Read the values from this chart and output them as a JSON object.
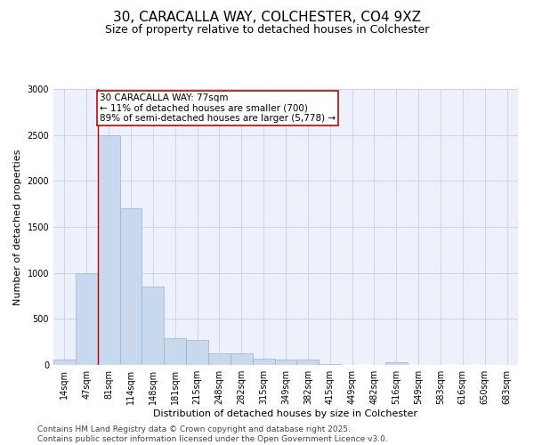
{
  "title": "30, CARACALLA WAY, COLCHESTER, CO4 9XZ",
  "subtitle": "Size of property relative to detached houses in Colchester",
  "xlabel": "Distribution of detached houses by size in Colchester",
  "ylabel": "Number of detached properties",
  "categories": [
    "14sqm",
    "47sqm",
    "81sqm",
    "114sqm",
    "148sqm",
    "181sqm",
    "215sqm",
    "248sqm",
    "282sqm",
    "315sqm",
    "349sqm",
    "382sqm",
    "415sqm",
    "449sqm",
    "482sqm",
    "516sqm",
    "549sqm",
    "583sqm",
    "616sqm",
    "650sqm",
    "683sqm"
  ],
  "values": [
    55,
    1000,
    2500,
    1700,
    850,
    290,
    270,
    130,
    130,
    70,
    60,
    55,
    10,
    0,
    0,
    30,
    0,
    0,
    0,
    0,
    0
  ],
  "bar_color": "#c8d9ee",
  "bar_edge_color": "#9ab3d0",
  "marker_line_color": "#cc0000",
  "annotation_text": "30 CARACALLA WAY: 77sqm\n← 11% of detached houses are smaller (700)\n89% of semi-detached houses are larger (5,778) →",
  "annotation_box_color": "#ffffff",
  "annotation_box_edge_color": "#cc0000",
  "ylim": [
    0,
    3000
  ],
  "yticks": [
    0,
    500,
    1000,
    1500,
    2000,
    2500,
    3000
  ],
  "plot_background": "#edf1fb",
  "grid_color": "#c8cfe8",
  "title_fontsize": 11,
  "subtitle_fontsize": 9,
  "tick_fontsize": 7,
  "ylabel_fontsize": 8,
  "xlabel_fontsize": 8,
  "annotation_fontsize": 7.5,
  "footer_text": "Contains HM Land Registry data © Crown copyright and database right 2025.\nContains public sector information licensed under the Open Government Licence v3.0.",
  "footer_fontsize": 6.5
}
